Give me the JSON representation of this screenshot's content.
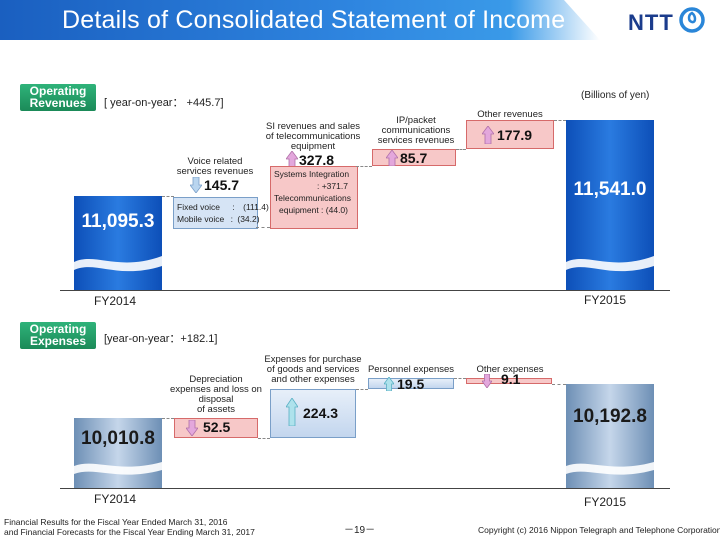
{
  "header": {
    "title": "Details of Consolidated Statement of Income",
    "logo_text": "NTT"
  },
  "revenue": {
    "badge_line1": "Operating",
    "badge_line2": "Revenues",
    "yoy": "[ year-on-year： +445.7]",
    "unit": "(Billions of yen)",
    "start_label": "FY2014",
    "end_label": "FY2015",
    "start_value": "11,095.3",
    "end_value": "11,541.0",
    "voice_label_1": "Voice related",
    "voice_label_2": "services revenues",
    "voice_value": "145.7",
    "voice_sub": [
      {
        "label": "Fixed voice",
        "sep": ":",
        "value": "(111.4)"
      },
      {
        "label": "Mobile voice",
        "sep": ":",
        "value": "(34.2)"
      }
    ],
    "si_label_1": "SI revenues and sales",
    "si_label_2": "of telecommunications",
    "si_label_3": "equipment",
    "si_value": "327.8",
    "si_sub_1": "Systems Integration",
    "si_sub_2": ": +371.7",
    "si_sub_3": "Telecommunications",
    "si_sub_4": "equipment   :   (44.0)",
    "ip_label_1": "IP/packet",
    "ip_label_2": "communications",
    "ip_label_3": "services revenues",
    "ip_value": "85.7",
    "other_label": "Other revenues",
    "other_value": "177.9"
  },
  "expenses": {
    "badge_line1": "Operating",
    "badge_line2": "Expenses",
    "yoy": "[year-on-year：+182.1]",
    "start_label": "FY2014",
    "end_label": "FY2015",
    "start_value": "10,010.8",
    "end_value": "10,192.8",
    "dep_label_1": "Depreciation",
    "dep_label_2": "expenses and loss on",
    "dep_label_3": "disposal",
    "dep_label_4": "of assets",
    "dep_value": "52.5",
    "purchase_label_1": "Expenses for purchase",
    "purchase_label_2": "of goods and services",
    "purchase_label_3": "and other expenses",
    "purchase_value": "224.3",
    "personnel_label": "Personnel expenses",
    "personnel_value": "19.5",
    "other_label": "Other expenses",
    "other_value": "9.1"
  },
  "chart_data": [
    {
      "type": "bar",
      "categories": [
        "FY2014",
        "Voice related services revenues",
        "SI revenues and sales of telecommunications equipment",
        "IP/packet communications services revenues",
        "Other revenues",
        "FY2015"
      ],
      "values": [
        11095.3,
        -145.7,
        327.8,
        85.7,
        177.9,
        11541.0
      ],
      "title": "Operating Revenues"
    },
    {
      "type": "bar",
      "categories": [
        "FY2014",
        "Depreciation expenses and loss on disposal of assets",
        "Expenses for purchase of goods and services and other expenses",
        "Personnel expenses",
        "Other expenses",
        "FY2015"
      ],
      "values": [
        10010.8,
        -52.5,
        224.3,
        19.5,
        -9.1,
        10192.8
      ],
      "title": "Operating Expenses"
    }
  ],
  "footer": {
    "left_1": "Financial Results for the Fiscal Year Ended March 31, 2016",
    "left_2": "and Financial Forecasts for the Fiscal Year Ending March 31, 2017",
    "page": "－19－",
    "copyright": "Copyright (c) 2016  Nippon Telegraph and Telephone Corporation"
  },
  "colors": {
    "accent_blue": "#1a5fc0",
    "increase_red": "#f4b5b5",
    "decrease_blue": "#c9daf0",
    "badge_green": "#1b8a58",
    "arrow_pink": "#d080c0",
    "arrow_cyan": "#7ed2e0"
  },
  "icons": [
    "ntt-logo-icon",
    "arrow-up-icon",
    "arrow-down-icon"
  ]
}
